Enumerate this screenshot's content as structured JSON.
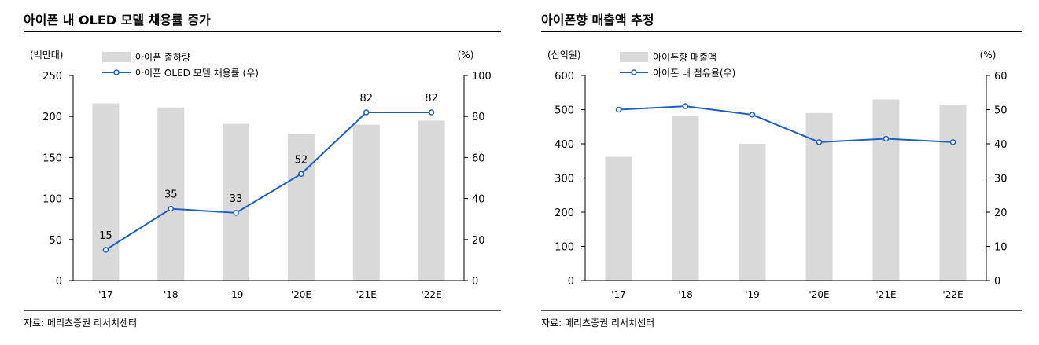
{
  "chart_data": [
    {
      "type": "bar",
      "title": "아이폰 내 OLED 모델 채용률 증가",
      "source": "자료: 메리츠증권 리서치센터",
      "categories": [
        "'17",
        "'18",
        "'19",
        "'20E",
        "'21E",
        "'22E"
      ],
      "ylabel_left": "(백만대)",
      "ylabel_right": "(%)",
      "ylim_left": [
        0,
        250
      ],
      "ylim_right": [
        0,
        100
      ],
      "yticks_left": [
        "0",
        "50",
        "100",
        "150",
        "200",
        "250"
      ],
      "yticks_right": [
        "0",
        "20",
        "40",
        "60",
        "80",
        "100"
      ],
      "grid": false,
      "legend_position": "top-left",
      "series": [
        {
          "name": "아이폰 출하량",
          "type": "bar",
          "axis": "left",
          "values": [
            216,
            211,
            191,
            179,
            190,
            195
          ]
        },
        {
          "name": "아이폰 OLED 모델 채용률 (우)",
          "type": "line",
          "axis": "right",
          "values": [
            15,
            35,
            33,
            52,
            82,
            82
          ],
          "labels": [
            "15",
            "35",
            "33",
            "52",
            "82",
            "82"
          ]
        }
      ],
      "colors": {
        "bar": "#d9d9d9",
        "line": "#1f5fbf"
      }
    },
    {
      "type": "bar",
      "title": "아이폰향 매출액 추정",
      "source": "자료: 메리츠증권 리서치센터",
      "categories": [
        "'17",
        "'18",
        "'19",
        "'20E",
        "'21E",
        "'22E"
      ],
      "ylabel_left": "(십억원)",
      "ylabel_right": "(%)",
      "ylim_left": [
        0,
        600
      ],
      "ylim_right": [
        0,
        60
      ],
      "yticks_left": [
        "0",
        "100",
        "200",
        "300",
        "400",
        "500",
        "600"
      ],
      "yticks_right": [
        "0",
        "10",
        "20",
        "30",
        "40",
        "50",
        "60"
      ],
      "grid": false,
      "legend_position": "top-left",
      "series": [
        {
          "name": "아이폰향 매출액",
          "type": "bar",
          "axis": "left",
          "values": [
            362,
            482,
            400,
            490,
            530,
            515
          ]
        },
        {
          "name": "아이폰 내 점유율(우)",
          "type": "line",
          "axis": "right",
          "values": [
            50,
            51,
            48.5,
            40.5,
            41.5,
            40.5
          ],
          "labels": []
        }
      ],
      "colors": {
        "bar": "#d9d9d9",
        "line": "#1f5fbf"
      }
    }
  ]
}
